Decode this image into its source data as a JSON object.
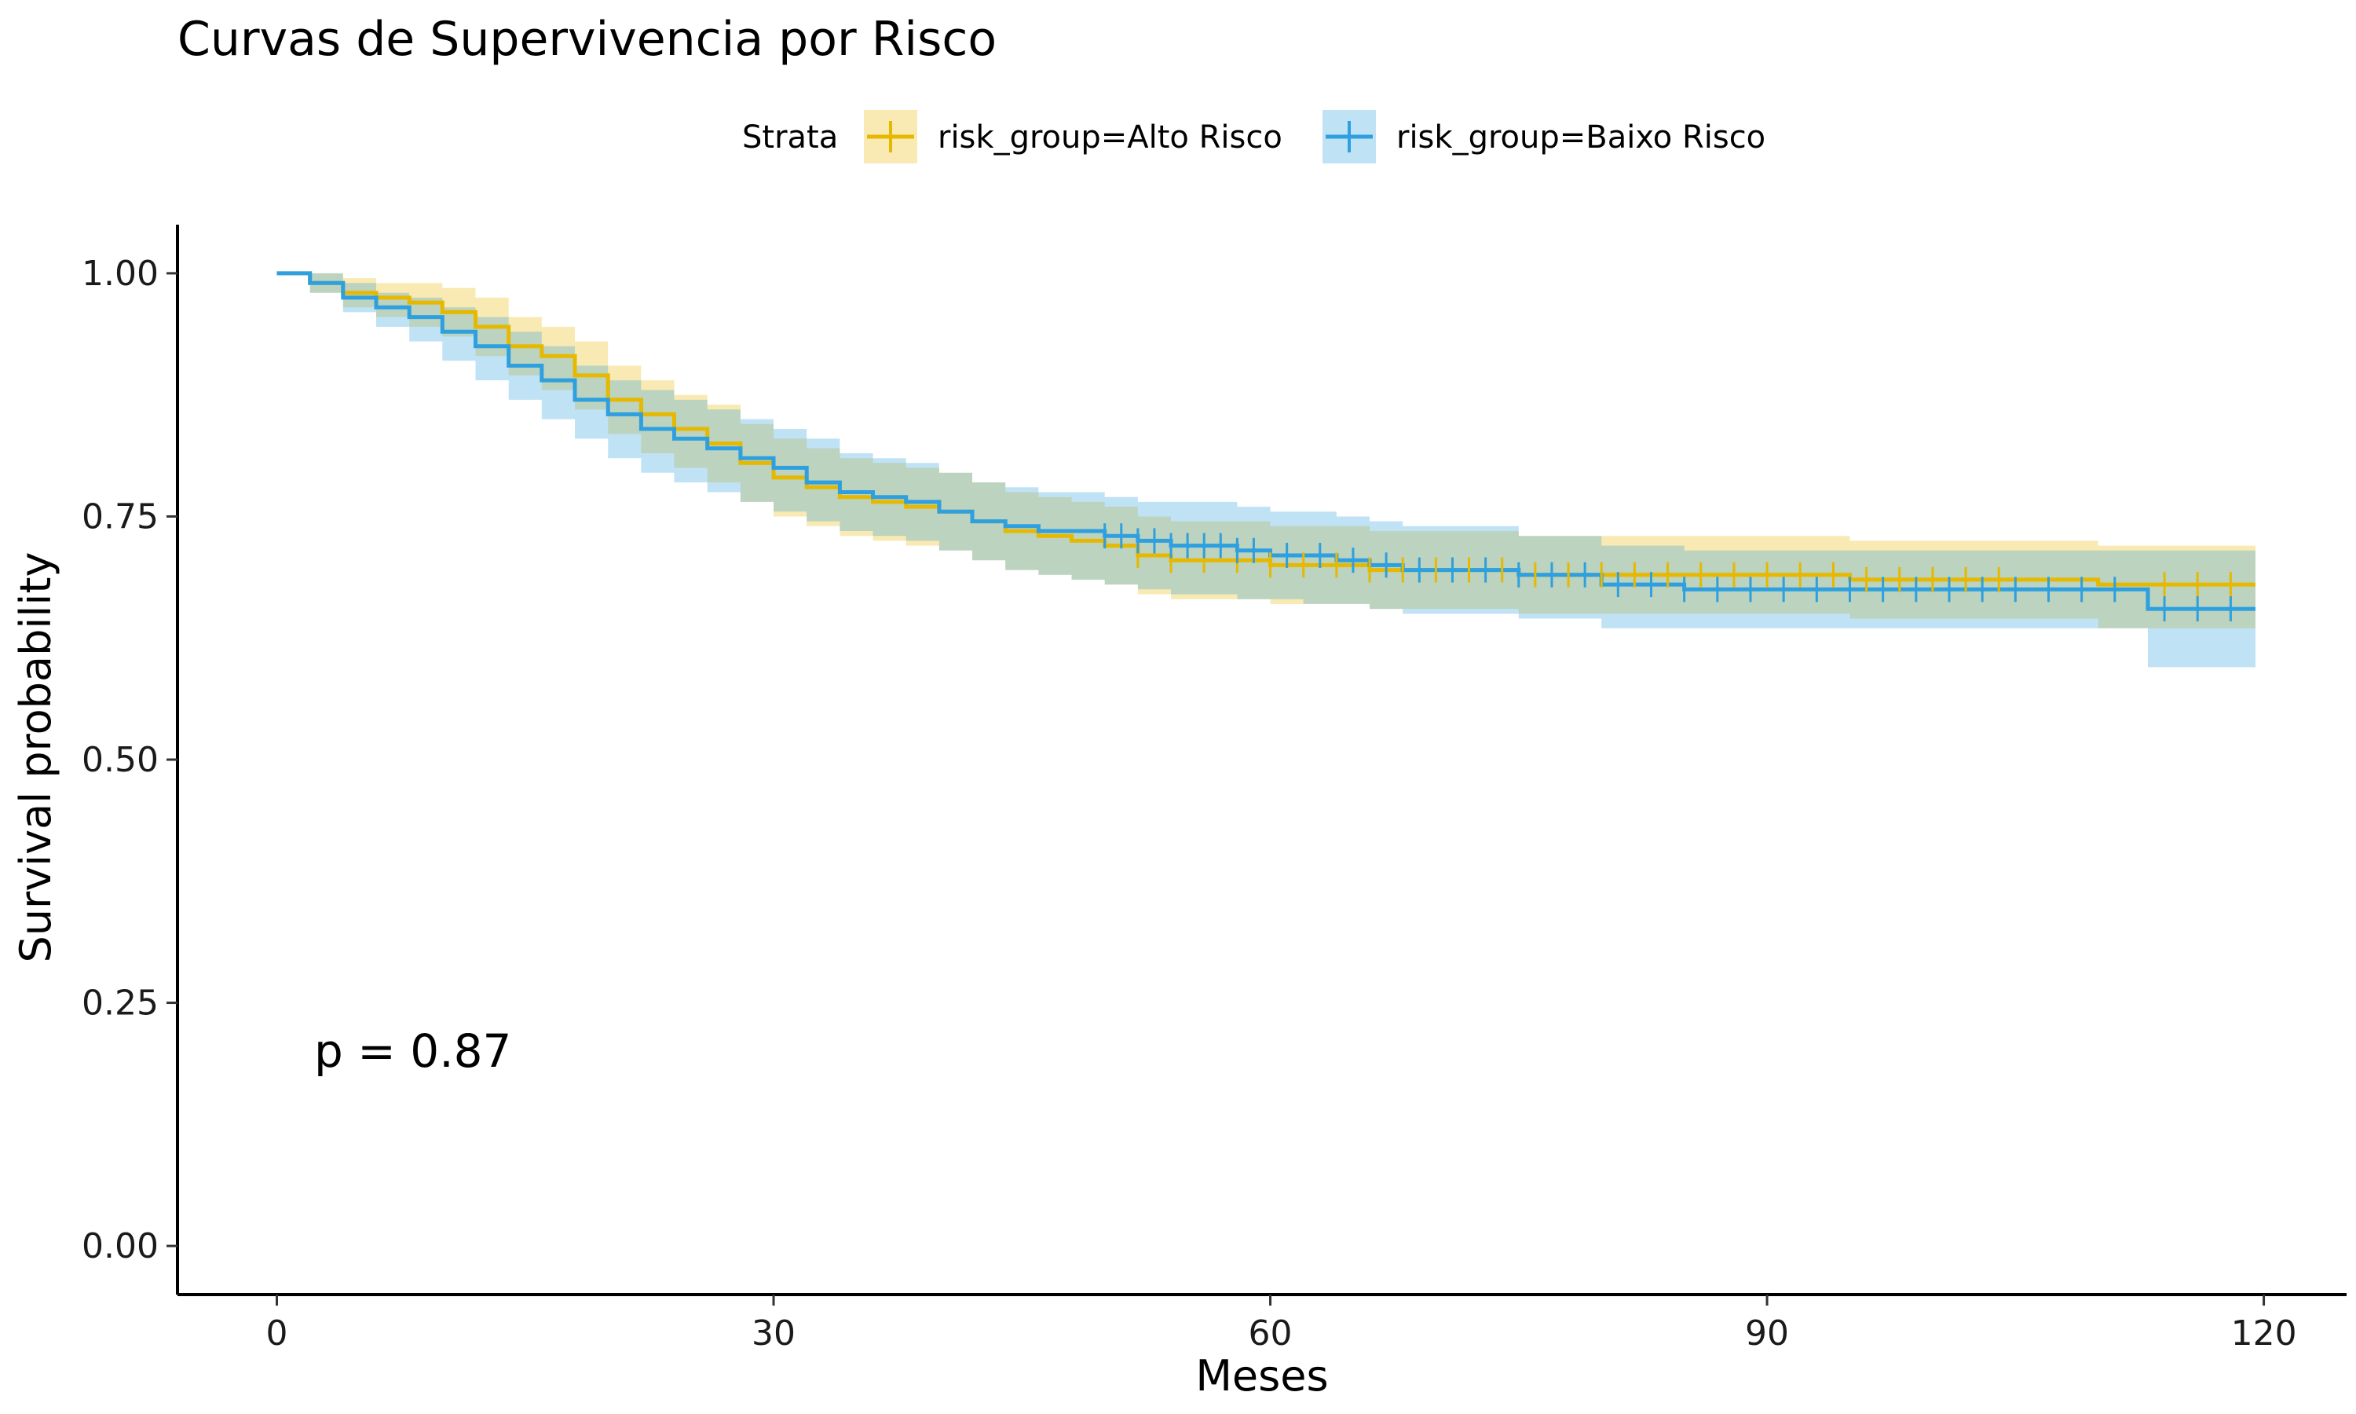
{
  "chart_data": {
    "type": "line",
    "subtype": "kaplan-meier",
    "title": "Curvas de Supervivencia por Risco",
    "xlabel": "Meses",
    "ylabel": "Survival probability",
    "xlim": [
      -6,
      125
    ],
    "ylim": [
      -0.05,
      1.05
    ],
    "xticks": [
      0,
      30,
      60,
      90,
      120
    ],
    "yticks": [
      0.0,
      0.25,
      0.5,
      0.75,
      1.0
    ],
    "xtick_labels": [
      "0",
      "30",
      "60",
      "90",
      "120"
    ],
    "ytick_labels": [
      "0.00",
      "0.25",
      "0.50",
      "0.75",
      "1.00"
    ],
    "grid": false,
    "legend": {
      "title": "Strata",
      "position": "top"
    },
    "annotation": "p = 0.87",
    "series": [
      {
        "name": "risk_group=Alto Risco",
        "color": "#E7B800",
        "x": [
          0,
          2,
          4,
          6,
          8,
          10,
          12,
          14,
          16,
          18,
          20,
          22,
          24,
          26,
          28,
          30,
          32,
          34,
          36,
          38,
          40,
          42,
          44,
          46,
          48,
          50,
          52,
          54,
          56,
          58,
          60,
          62,
          64,
          66,
          68,
          70,
          75,
          80,
          85,
          90,
          95,
          100,
          105,
          110,
          113,
          119.5
        ],
        "y": [
          1.0,
          0.99,
          0.98,
          0.975,
          0.97,
          0.96,
          0.945,
          0.925,
          0.915,
          0.895,
          0.87,
          0.855,
          0.84,
          0.825,
          0.805,
          0.79,
          0.78,
          0.77,
          0.765,
          0.76,
          0.755,
          0.745,
          0.735,
          0.73,
          0.725,
          0.72,
          0.71,
          0.705,
          0.705,
          0.705,
          0.7,
          0.7,
          0.7,
          0.695,
          0.695,
          0.695,
          0.69,
          0.69,
          0.69,
          0.69,
          0.685,
          0.685,
          0.685,
          0.68,
          0.68,
          0.68
        ],
        "lower": [
          1.0,
          0.98,
          0.965,
          0.955,
          0.945,
          0.935,
          0.915,
          0.895,
          0.88,
          0.86,
          0.835,
          0.815,
          0.8,
          0.785,
          0.765,
          0.75,
          0.74,
          0.73,
          0.725,
          0.72,
          0.715,
          0.705,
          0.695,
          0.69,
          0.685,
          0.68,
          0.67,
          0.665,
          0.665,
          0.665,
          0.66,
          0.66,
          0.66,
          0.655,
          0.655,
          0.655,
          0.65,
          0.65,
          0.65,
          0.65,
          0.645,
          0.645,
          0.645,
          0.635,
          0.635,
          0.635
        ],
        "upper": [
          1.0,
          1.0,
          0.995,
          0.99,
          0.99,
          0.985,
          0.975,
          0.955,
          0.945,
          0.93,
          0.905,
          0.89,
          0.875,
          0.865,
          0.845,
          0.83,
          0.82,
          0.81,
          0.805,
          0.8,
          0.795,
          0.785,
          0.775,
          0.77,
          0.765,
          0.76,
          0.75,
          0.745,
          0.745,
          0.745,
          0.74,
          0.74,
          0.74,
          0.735,
          0.735,
          0.735,
          0.73,
          0.73,
          0.73,
          0.73,
          0.725,
          0.725,
          0.725,
          0.72,
          0.72,
          0.72
        ],
        "censor_x": [
          52,
          54,
          56,
          58,
          60,
          62,
          64,
          66,
          68,
          70,
          72,
          74,
          76,
          78,
          80,
          82,
          84,
          86,
          88,
          90,
          92,
          94,
          96,
          98,
          100,
          102,
          104,
          114,
          116,
          118
        ]
      },
      {
        "name": "risk_group=Baixo Risco",
        "color": "#2E9FDF",
        "x": [
          0,
          2,
          4,
          6,
          8,
          10,
          12,
          14,
          16,
          18,
          20,
          22,
          24,
          26,
          28,
          30,
          32,
          34,
          36,
          38,
          40,
          42,
          44,
          46,
          48,
          50,
          52,
          54,
          56,
          58,
          60,
          62,
          64,
          66,
          68,
          70,
          75,
          80,
          85,
          90,
          95,
          100,
          105,
          110,
          113,
          119.5
        ],
        "y": [
          1.0,
          0.99,
          0.975,
          0.965,
          0.955,
          0.94,
          0.925,
          0.905,
          0.89,
          0.87,
          0.855,
          0.84,
          0.83,
          0.82,
          0.81,
          0.8,
          0.785,
          0.775,
          0.77,
          0.765,
          0.755,
          0.745,
          0.74,
          0.735,
          0.735,
          0.73,
          0.725,
          0.72,
          0.72,
          0.715,
          0.71,
          0.71,
          0.705,
          0.7,
          0.695,
          0.695,
          0.69,
          0.68,
          0.675,
          0.675,
          0.675,
          0.675,
          0.675,
          0.675,
          0.655,
          0.655
        ],
        "lower": [
          1.0,
          0.98,
          0.96,
          0.945,
          0.93,
          0.91,
          0.89,
          0.87,
          0.85,
          0.83,
          0.81,
          0.795,
          0.785,
          0.775,
          0.765,
          0.755,
          0.745,
          0.735,
          0.73,
          0.725,
          0.715,
          0.705,
          0.695,
          0.69,
          0.685,
          0.68,
          0.675,
          0.67,
          0.67,
          0.665,
          0.665,
          0.66,
          0.66,
          0.655,
          0.65,
          0.65,
          0.645,
          0.635,
          0.635,
          0.635,
          0.635,
          0.635,
          0.635,
          0.635,
          0.595,
          0.595
        ],
        "upper": [
          1.0,
          1.0,
          0.99,
          0.98,
          0.975,
          0.965,
          0.955,
          0.94,
          0.925,
          0.905,
          0.89,
          0.88,
          0.87,
          0.86,
          0.85,
          0.84,
          0.83,
          0.815,
          0.81,
          0.805,
          0.795,
          0.785,
          0.78,
          0.775,
          0.775,
          0.77,
          0.765,
          0.765,
          0.765,
          0.76,
          0.755,
          0.755,
          0.75,
          0.745,
          0.74,
          0.74,
          0.73,
          0.72,
          0.715,
          0.715,
          0.715,
          0.715,
          0.715,
          0.715,
          0.715,
          0.715
        ],
        "censor_x": [
          50,
          51,
          52,
          53,
          54,
          55,
          56,
          57,
          58,
          59,
          61,
          63,
          65,
          67,
          69,
          71,
          73,
          75,
          77,
          79,
          81,
          83,
          85,
          87,
          89,
          91,
          93,
          95,
          97,
          99,
          101,
          103,
          105,
          107,
          109,
          111,
          114,
          116,
          118
        ]
      }
    ]
  }
}
